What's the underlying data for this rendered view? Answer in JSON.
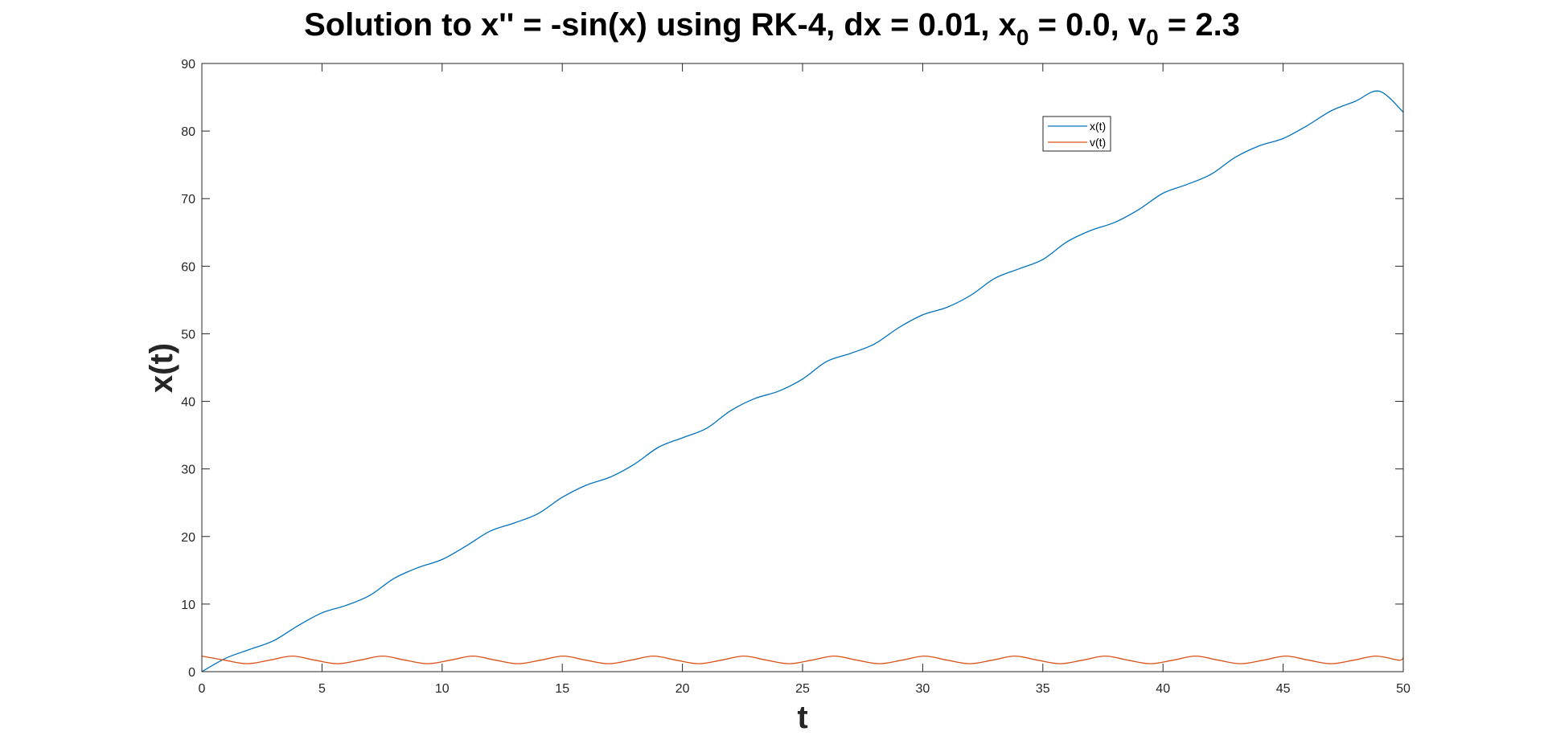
{
  "chart_data": {
    "type": "line",
    "title": {
      "main": "Solution to x'' = -sin(x) using RK-4, dx = 0.01, x",
      "sub1": "0",
      "mid": " = 0.0, v",
      "sub2": "0",
      "end": " = 2.3"
    },
    "xlabel": "t",
    "ylabel": "x(t)",
    "xlim": [
      0,
      50
    ],
    "ylim": [
      0,
      90
    ],
    "xticks": [
      0,
      5,
      10,
      15,
      20,
      25,
      30,
      35,
      40,
      45,
      50
    ],
    "yticks": [
      0,
      10,
      20,
      30,
      40,
      50,
      60,
      70,
      80,
      90
    ],
    "grid": false,
    "legend_position": "top-right",
    "series": [
      {
        "name": "x(t)",
        "color": "#0072BD",
        "x": [
          0,
          1,
          2,
          3,
          4,
          5,
          6,
          7,
          8,
          9,
          10,
          11,
          12,
          13,
          14,
          15,
          16,
          17,
          18,
          19,
          20,
          21,
          22,
          23,
          24,
          25,
          26,
          27,
          28,
          29,
          30,
          31,
          32,
          33,
          34,
          35,
          36,
          37,
          38,
          39,
          40,
          41,
          42,
          43,
          44,
          45,
          46,
          47,
          48,
          49,
          50
        ],
        "y": [
          0,
          2.0,
          3.3,
          4.6,
          6.8,
          8.7,
          9.8,
          11.3,
          13.8,
          15.4,
          16.6,
          18.6,
          20.8,
          22.0,
          23.4,
          25.8,
          27.6,
          28.8,
          30.7,
          33.2,
          34.6,
          36.0,
          38.6,
          40.4,
          41.5,
          43.3,
          45.9,
          47.1,
          48.5,
          50.9,
          52.8,
          53.9,
          55.7,
          58.2,
          59.6,
          61.0,
          63.6,
          65.3,
          66.5,
          68.4,
          70.8,
          72.1,
          73.6,
          76.1,
          77.8,
          78.9,
          80.8,
          83.0,
          84.4,
          85.9,
          82.8
        ]
      },
      {
        "name": "v(t)",
        "color": "#D95319",
        "x": [
          0,
          0.94,
          1.88,
          2.82,
          3.76,
          4.7,
          5.64,
          6.58,
          7.52,
          8.46,
          9.4,
          10.34,
          11.28,
          12.22,
          13.16,
          14.1,
          15.04,
          15.98,
          16.92,
          17.86,
          18.8,
          19.74,
          20.68,
          21.62,
          22.56,
          23.5,
          24.44,
          25.38,
          26.32,
          27.26,
          28.2,
          29.14,
          30.08,
          31.02,
          31.96,
          32.9,
          33.84,
          34.78,
          35.72,
          36.66,
          37.6,
          38.54,
          39.48,
          40.42,
          41.36,
          42.3,
          43.24,
          44.18,
          45.12,
          46.06,
          47.0,
          47.94,
          48.88,
          49.82,
          50
        ],
        "y": [
          2.3,
          1.7,
          1.17,
          1.7,
          2.3,
          1.7,
          1.17,
          1.7,
          2.3,
          1.7,
          1.17,
          1.7,
          2.3,
          1.7,
          1.17,
          1.7,
          2.3,
          1.7,
          1.17,
          1.7,
          2.3,
          1.7,
          1.17,
          1.7,
          2.3,
          1.7,
          1.17,
          1.7,
          2.3,
          1.7,
          1.17,
          1.7,
          2.3,
          1.7,
          1.17,
          1.7,
          2.3,
          1.7,
          1.17,
          1.7,
          2.3,
          1.7,
          1.17,
          1.7,
          2.3,
          1.7,
          1.17,
          1.7,
          2.3,
          1.7,
          1.17,
          1.7,
          2.3,
          1.7,
          2.1
        ]
      }
    ]
  }
}
